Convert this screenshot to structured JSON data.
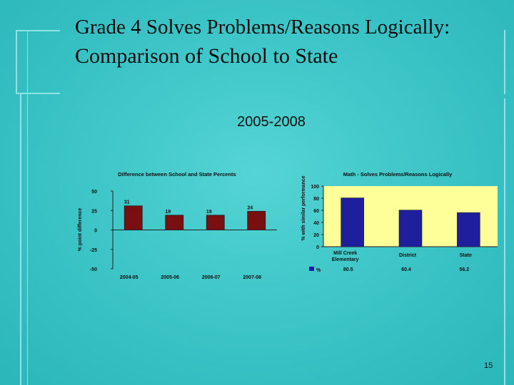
{
  "slide": {
    "title_line1": "Grade 4 Solves Problems/Reasons Logically:",
    "title_line2": "Comparison of School to State",
    "subtitle": "2005-2008",
    "page_number": "15"
  },
  "chart_data": [
    {
      "type": "bar",
      "title": "Difference between School and State Percents",
      "xlabel": "",
      "ylabel": "% point difference",
      "categories": [
        "2004-05",
        "2005-06",
        "2006-07",
        "2007-08"
      ],
      "values": [
        31,
        19,
        19,
        24
      ],
      "ylim": [
        -50,
        50
      ],
      "yticks": [
        50,
        25,
        0,
        -25,
        -50
      ],
      "bar_color": "#7a0f12"
    },
    {
      "type": "bar",
      "title": "Math - Solves Problems/Reasons Logically",
      "xlabel": "",
      "ylabel": "% with similar performance",
      "categories": [
        "Mill Creek Elementary",
        "District",
        "State"
      ],
      "series": [
        {
          "name": "%",
          "values": [
            80.5,
            60.4,
            56.2
          ]
        }
      ],
      "value_labels": [
        "80.5",
        "60.4",
        "56.2"
      ],
      "ylim": [
        0,
        100
      ],
      "yticks": [
        100,
        80,
        60,
        40,
        20,
        0
      ],
      "bar_color": "#1f1f9e",
      "plot_bg": "#ffff99"
    }
  ]
}
